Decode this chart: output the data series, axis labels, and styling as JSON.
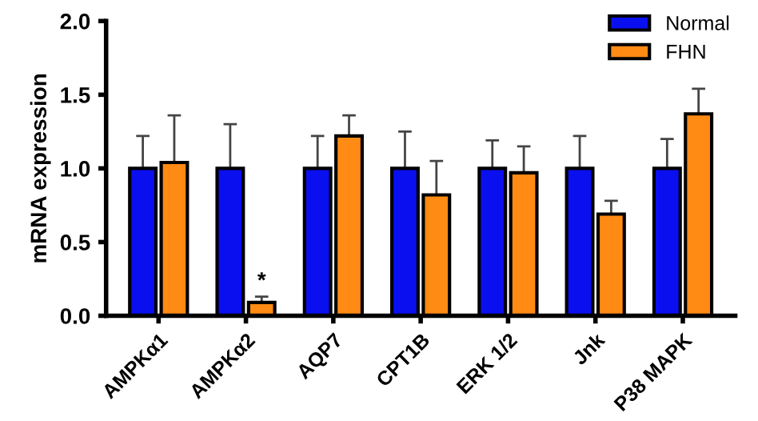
{
  "chart_data": {
    "type": "bar",
    "ylabel": "mRNA expression",
    "categories": [
      "AMPKα1",
      "AMPKα2",
      "AQP7",
      "CPT1B",
      "ERK 1/2",
      "Jnk",
      "P38 MAPK"
    ],
    "series": [
      {
        "name": "Normal",
        "color": "#0a0ff0",
        "values": [
          1,
          1,
          1,
          1,
          1,
          1,
          1
        ],
        "errors": [
          [
            1,
            1.22
          ],
          [
            1,
            1.3
          ],
          [
            1,
            1.22
          ],
          [
            1,
            1.25
          ],
          [
            1,
            1.19
          ],
          [
            1,
            1.22
          ],
          [
            1,
            1.2
          ]
        ]
      },
      {
        "name": "FHN",
        "color": "#ff8a14",
        "values": [
          1.04,
          0.09,
          1.22,
          0.82,
          0.97,
          0.69,
          1.37
        ],
        "errors": [
          [
            1.04,
            1.36
          ],
          [
            0.09,
            0.13
          ],
          [
            1.22,
            1.36
          ],
          [
            0.82,
            1.05
          ],
          [
            0.97,
            1.15
          ],
          [
            0.69,
            0.78
          ],
          [
            1.37,
            1.54
          ]
        ]
      }
    ],
    "annotations": [
      {
        "text": "*",
        "x": "AMPKα2",
        "y": 0.13
      }
    ],
    "ylim": [
      0,
      2.0
    ],
    "yticks": [
      {
        "value": 0,
        "label": "0.0"
      },
      {
        "value": 0.5,
        "label": "0.5"
      },
      {
        "value": 1.0,
        "label": "1.0"
      },
      {
        "value": 1.5,
        "label": "1.5"
      },
      {
        "value": 2.0,
        "label": "2.0"
      }
    ],
    "grid": false,
    "legend": "top right"
  }
}
